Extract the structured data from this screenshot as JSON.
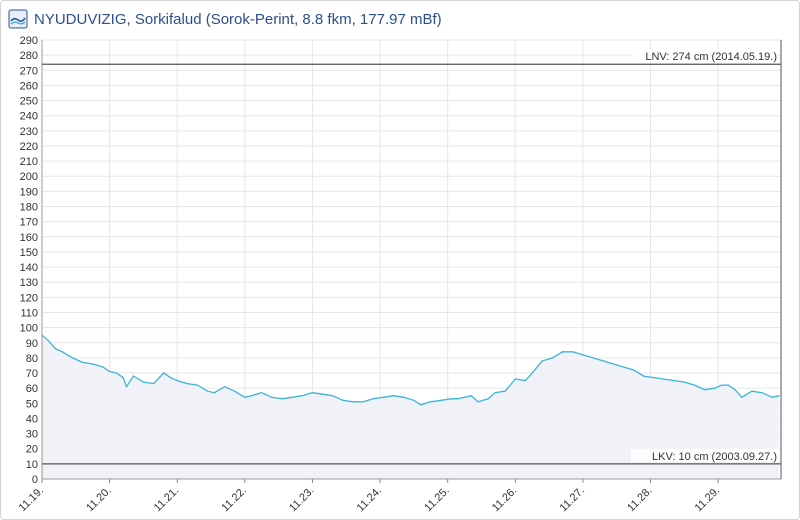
{
  "header": {
    "title": "NYUDUVIZIG, Sorkifalud (Sorok-Perint, 8.8 fkm, 177.97 mBf)"
  },
  "chart_data": {
    "type": "area",
    "title": "NYUDUVIZIG, Sorkifalud (Sorok-Perint, 8.8 fkm, 177.97 mBf)",
    "xlabel": "",
    "ylabel": "",
    "ylim": [
      0,
      290
    ],
    "y_ticks": [
      0,
      10,
      20,
      30,
      40,
      50,
      60,
      70,
      80,
      90,
      100,
      110,
      120,
      130,
      140,
      150,
      160,
      170,
      180,
      190,
      200,
      210,
      220,
      230,
      240,
      250,
      260,
      270,
      280,
      290
    ],
    "xlim": [
      0,
      10.93
    ],
    "x_ticks": [
      {
        "pos": 0,
        "label": "11.19."
      },
      {
        "pos": 1,
        "label": "11.20."
      },
      {
        "pos": 2,
        "label": "11.21."
      },
      {
        "pos": 3,
        "label": "11.22."
      },
      {
        "pos": 4,
        "label": "11.23."
      },
      {
        "pos": 5,
        "label": "11.24."
      },
      {
        "pos": 6,
        "label": "11.25."
      },
      {
        "pos": 7,
        "label": "11.26."
      },
      {
        "pos": 8,
        "label": "11.27."
      },
      {
        "pos": 9,
        "label": "11.28."
      },
      {
        "pos": 10,
        "label": "11.29."
      }
    ],
    "grid": true,
    "colors": {
      "line": "#3cb4d8",
      "fill": "#f1f2f7",
      "reference": "#555555",
      "grid": "#e6e6e6"
    },
    "reference_lines": [
      {
        "value": 274,
        "label": "LNV: 274 cm (2014.05.19.)"
      },
      {
        "value": 10,
        "label": "LKV: 10 cm (2003.09.27.)"
      }
    ],
    "series": [
      {
        "x": [
          0,
          0.1,
          0.2,
          0.3,
          0.45,
          0.6,
          0.75,
          0.9,
          1.0,
          1.1,
          1.2,
          1.25,
          1.35,
          1.5,
          1.65,
          1.8,
          1.9,
          2.0,
          2.15,
          2.3,
          2.45,
          2.55,
          2.7,
          2.85,
          3.0,
          3.1,
          3.25,
          3.4,
          3.55,
          3.7,
          3.85,
          4.0,
          4.15,
          4.3,
          4.45,
          4.6,
          4.75,
          4.9,
          5.05,
          5.2,
          5.35,
          5.5,
          5.6,
          5.75,
          5.9,
          6.05,
          6.15,
          6.25,
          6.35,
          6.45,
          6.6,
          6.7,
          6.85,
          7.0,
          7.15,
          7.25,
          7.4,
          7.55,
          7.7,
          7.85,
          8.0,
          8.15,
          8.3,
          8.45,
          8.6,
          8.75,
          8.9,
          9.05,
          9.2,
          9.35,
          9.5,
          9.65,
          9.8,
          9.95,
          10.05,
          10.15,
          10.25,
          10.35,
          10.5,
          10.65,
          10.8,
          10.9
        ],
        "values": [
          95,
          91,
          86,
          84,
          80,
          77,
          76,
          74,
          71,
          70,
          67,
          61,
          68,
          64,
          63,
          70,
          67,
          65,
          63,
          62,
          58,
          57,
          61,
          58,
          54,
          55,
          57,
          54,
          53,
          54,
          55,
          57,
          56,
          55,
          52,
          51,
          51,
          53,
          54,
          55,
          54,
          52,
          49,
          51,
          52,
          53,
          53,
          54,
          55,
          51,
          53,
          57,
          58,
          66,
          65,
          70,
          78,
          80,
          84,
          84,
          82,
          80,
          78,
          76,
          74,
          72,
          68,
          67,
          66,
          65,
          64,
          62,
          59,
          60,
          62,
          62,
          59,
          54,
          58,
          57,
          54,
          55
        ]
      }
    ]
  }
}
